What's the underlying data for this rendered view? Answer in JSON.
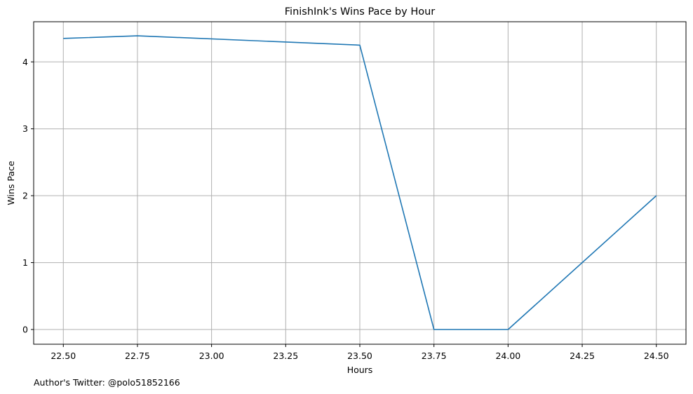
{
  "chart_data": {
    "type": "line",
    "title": "FinishInk's Wins Pace by Hour",
    "xlabel": "Hours",
    "ylabel": "Wins Pace",
    "xlim": [
      22.4,
      24.6
    ],
    "ylim": [
      -0.22,
      4.6
    ],
    "xticks": [
      22.5,
      22.75,
      23.0,
      23.25,
      23.5,
      23.75,
      24.0,
      24.25,
      24.5
    ],
    "xtick_labels": [
      "22.50",
      "22.75",
      "23.00",
      "23.25",
      "23.50",
      "23.75",
      "24.00",
      "24.25",
      "24.50"
    ],
    "yticks": [
      0,
      1,
      2,
      3,
      4
    ],
    "ytick_labels": [
      "0",
      "1",
      "2",
      "3",
      "4"
    ],
    "grid": true,
    "series": [
      {
        "color": "#1f77b4",
        "x": [
          22.5,
          22.75,
          23.5,
          23.75,
          24.0,
          24.5
        ],
        "y": [
          4.35,
          4.39,
          4.25,
          0,
          0,
          2
        ]
      }
    ]
  },
  "footer": {
    "text": "Author's Twitter: @polo51852166"
  }
}
